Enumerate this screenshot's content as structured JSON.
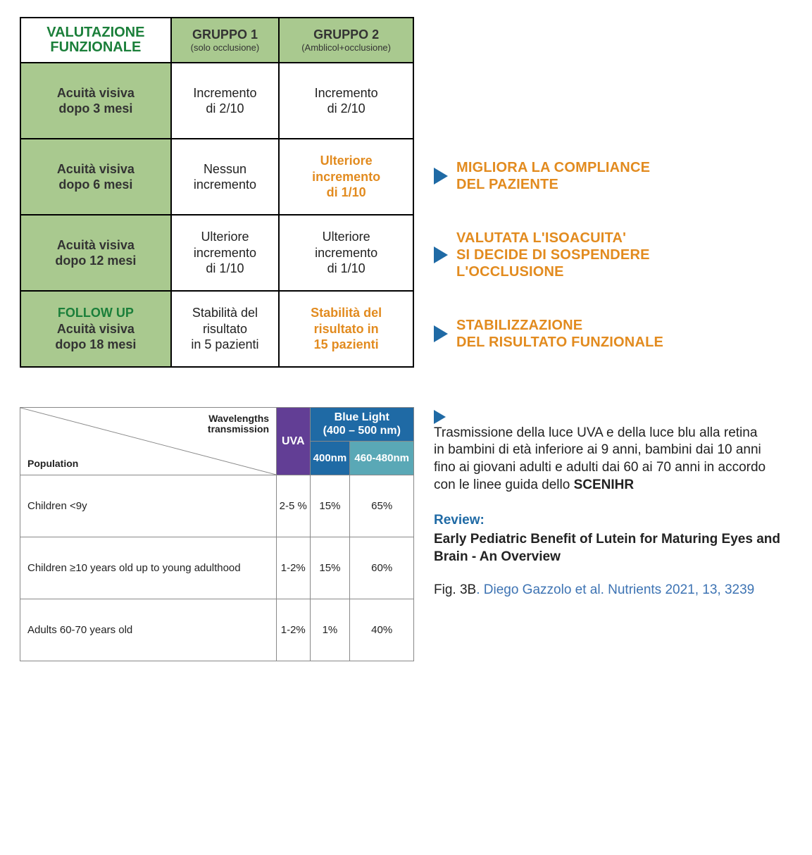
{
  "colors": {
    "green_header_text": "#1b7f3a",
    "green_cell_bg": "#a9c98f",
    "orange": "#e28b1f",
    "blue_triangle": "#1f6aa5",
    "uva_bg": "#623e95",
    "blue_light_bg": "#1f6aa5",
    "blue_460_bg": "#5aa8b6",
    "citation_blue": "#3d73b3",
    "border_black": "#000000",
    "border_gray": "#888888"
  },
  "eval": {
    "header": {
      "corner_line1": "VALUTAZIONE",
      "corner_line2": "FUNZIONALE",
      "group1_main": "GRUPPO 1",
      "group1_sub": "(solo occlusione)",
      "group2_main": "GRUPPO 2",
      "group2_sub": "(Amblicol+occlusione)"
    },
    "rows": [
      {
        "label_l1": "Acuità visiva",
        "label_l2": "dopo 3 mesi",
        "g1": "Incremento\ndi 2/10",
        "g2": "Incremento\ndi 2/10",
        "g2_highlight": false,
        "note": ""
      },
      {
        "label_l1": "Acuità visiva",
        "label_l2": "dopo 6 mesi",
        "g1": "Nessun\nincremento",
        "g2": "Ulteriore\nincremento\ndi 1/10",
        "g2_highlight": true,
        "note": "MIGLIORA LA COMPLIANCE\nDEL PAZIENTE"
      },
      {
        "label_l1": "Acuità visiva",
        "label_l2": "dopo 12 mesi",
        "g1": "Ulteriore\nincremento\ndi 1/10",
        "g2": "Ulteriore\nincremento\ndi 1/10",
        "g2_highlight": false,
        "note": "VALUTATA L'ISOACUITA'\nSI DECIDE DI SOSPENDERE\nL'OCCLUSIONE"
      },
      {
        "fu_title": "FOLLOW UP",
        "label_l1": "Acuità visiva",
        "label_l2": "dopo 18 mesi",
        "g1": "Stabilità del\nrisultato\nin 5 pazienti",
        "g2": "Stabilità del\nrisultato  in\n15 pazienti",
        "g2_highlight": true,
        "note": "STABILIZZAZIONE\nDEL RISULTATO FUNZIONALE"
      }
    ]
  },
  "light": {
    "diag_top": "Wavelengths\ntransmission",
    "diag_bot": "Population",
    "uva_label": "UVA",
    "blue_header_l1": "Blue Light",
    "blue_header_l2": "(400 – 500 nm)",
    "col_400": "400nm",
    "col_460": "460-480nm",
    "rows": [
      {
        "pop": "Children <9y",
        "uva": "2-5 %",
        "b400": "15%",
        "b460": "65%"
      },
      {
        "pop": "Children ≥10 years old up to young adulthood",
        "uva": "1-2%",
        "b400": "15%",
        "b460": "60%"
      },
      {
        "pop": "Adults 60-70 years old",
        "uva": "1-2%",
        "b400": "1%",
        "b460": "40%"
      }
    ]
  },
  "side": {
    "caption_pre": "Trasmissione della luce UVA e della luce blu alla retina in bambini di età inferiore ai 9 anni,  bambini dai 10 anni fino ai giovani adulti e adulti dai 60 ai 70 anni in accordo con le linee guida dello ",
    "caption_bold": "SCENIHR",
    "review_label": "Review:",
    "review_title": "Early Pediatric Benefit of Lutein for Maturing Eyes and Brain - An Overview",
    "citation_fig": "Fig. 3B",
    "citation_rest": ". Diego Gazzolo et al. Nutrients 2021, 13, 3239"
  }
}
